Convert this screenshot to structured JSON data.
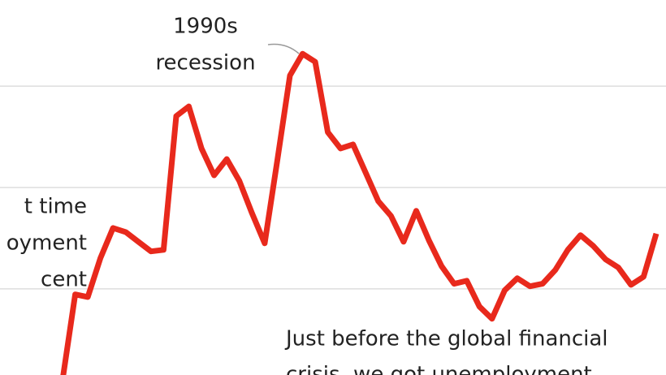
{
  "chart_data": {
    "type": "line",
    "categories": [
      null,
      null,
      null,
      null,
      null,
      null,
      null,
      null,
      null,
      null,
      null,
      null,
      null,
      null,
      null,
      null,
      null,
      null,
      null,
      null,
      null,
      null,
      null,
      null,
      null,
      null,
      null,
      null,
      null,
      null,
      null,
      null,
      null,
      null,
      null,
      null,
      null,
      null,
      null,
      null,
      null,
      null,
      null,
      null,
      null,
      null,
      null,
      null
    ],
    "series": [
      {
        "color": "#e8291c",
        "values": [
          4.2,
          5.89,
          5.84,
          6.61,
          7.2,
          7.12,
          6.93,
          6.74,
          6.77,
          9.41,
          9.6,
          8.77,
          8.24,
          8.56,
          8.13,
          7.49,
          6.9,
          8.53,
          10.21,
          10.64,
          10.48,
          9.09,
          8.77,
          8.85,
          8.29,
          7.73,
          7.44,
          6.93,
          7.54,
          6.96,
          6.45,
          6.1,
          6.16,
          5.65,
          5.41,
          5.97,
          6.21,
          6.05,
          6.1,
          6.37,
          6.77,
          7.06,
          6.85,
          6.58,
          6.42,
          6.08,
          6.24,
          7.09
        ]
      }
    ],
    "ylim": [
      4.3,
      11.7
    ],
    "gridlines": [
      6,
      8,
      10
    ],
    "grid": true,
    "annotations": [
      {
        "text": [
          "1990s",
          "recession"
        ]
      },
      {
        "text": [
          "t time",
          "oyment",
          "cent"
        ]
      },
      {
        "text": [
          "Just before the global financial",
          "crisis, we got unemployment"
        ]
      }
    ]
  }
}
